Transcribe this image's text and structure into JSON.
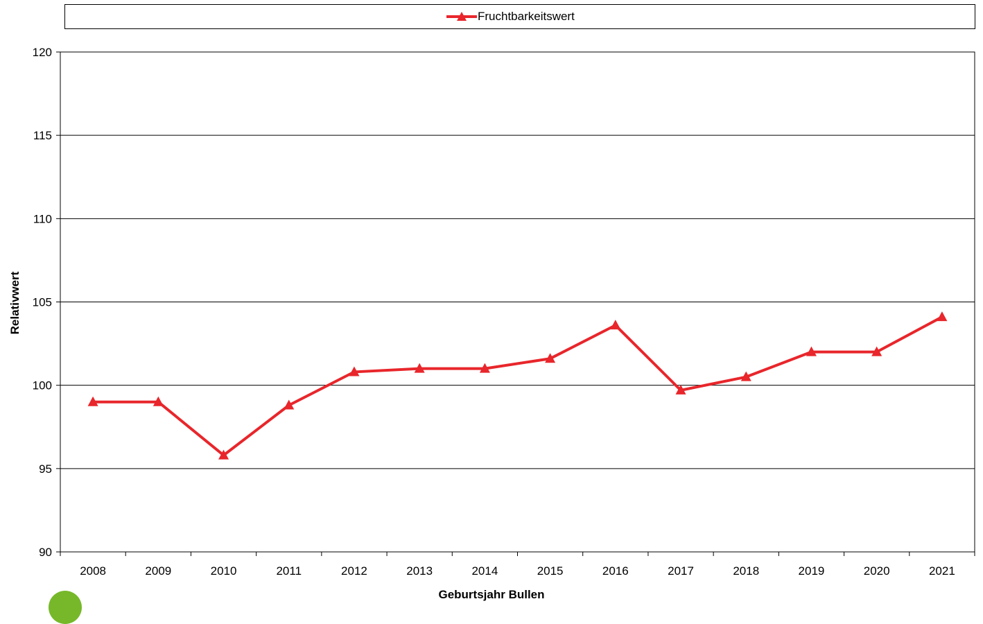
{
  "legend": {
    "label": "Fruchtbarkeitswert"
  },
  "axes": {
    "xlabel": "Geburtsjahr Bullen",
    "ylabel": "Relativwert"
  },
  "colors": {
    "series": "#e8262b",
    "logo": "#76b82a"
  },
  "chart_data": {
    "type": "line",
    "title": "",
    "xlabel": "Geburtsjahr Bullen",
    "ylabel": "Relativwert",
    "categories": [
      "2008",
      "2009",
      "2010",
      "2011",
      "2012",
      "2013",
      "2014",
      "2015",
      "2016",
      "2017",
      "2018",
      "2019",
      "2020",
      "2021"
    ],
    "series": [
      {
        "name": "Fruchtbarkeitswert",
        "values": [
          99,
          99,
          95.8,
          98.8,
          100.8,
          101,
          101,
          101.6,
          103.6,
          99.7,
          100.5,
          102,
          102,
          104.1
        ],
        "marker": "triangle",
        "color": "#e8262b"
      }
    ],
    "ylim": [
      90,
      120
    ],
    "yticks": [
      90,
      95,
      100,
      105,
      110,
      115,
      120
    ],
    "grid": true,
    "legend_position": "top"
  }
}
